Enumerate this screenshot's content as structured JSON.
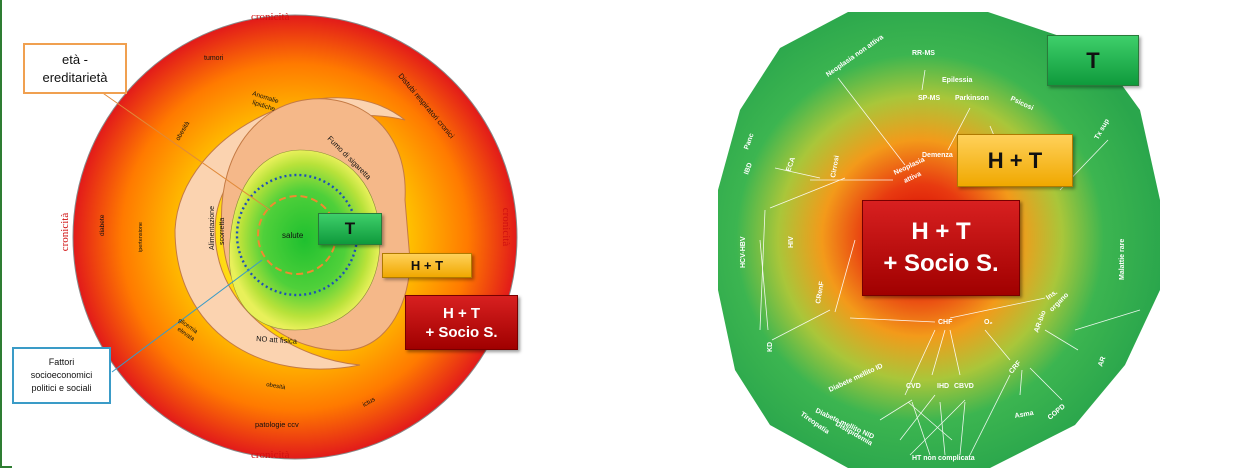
{
  "left": {
    "cronicita_top": "cronicità",
    "cronicita_left": "cronicità",
    "cronicita_right": "cronicità",
    "cronicita_bottom": "cronicità",
    "tumori": "tumori",
    "anomalie_1": "Anomalie",
    "anomalie_2": "lipidiche",
    "distubi": "Distubi respiratori cronici",
    "obesita_top": "obesità",
    "fumo": "Fumo di sigaretta",
    "alimentazione_1": "Alimentazione",
    "alimentazione_2": "scorretta",
    "ipertensione": "ipertensione",
    "diabete": "diabete",
    "salute": "salute",
    "glicemia_1": "glicemia",
    "glicemia_2": "elevata",
    "no_att": "NO att fisica",
    "obesita_bottom": "obesità",
    "ictus": "ictus",
    "patologie": "patologie ccv",
    "eta_1": "età -",
    "eta_2": "ereditarietà",
    "fattori_1": "Fattori",
    "fattori_2": "socioeconomici",
    "fattori_3": "politici e sociali",
    "badge_t": "T",
    "badge_ht": "H + T",
    "badge_hts_1": "H + T",
    "badge_hts_2": "+ Socio S."
  },
  "right": {
    "badge_t": "T",
    "badge_ht": "H + T",
    "badge_hts_1": "H + T",
    "badge_hts_2": "+ Socio S.",
    "labels": {
      "rr_ms": "RR-MS",
      "neoplasia_non_attiva": "Neoplasia non attiva",
      "epilessia": "Epilessia",
      "sp_ms": "SP-MS",
      "parkinson": "Parkinson",
      "psicosi": "Psicosi",
      "tx_sup": "Tx sup",
      "panc": "Panc",
      "ibd": "IBD",
      "eca": "ECA",
      "cirrosi": "Cirrosi",
      "neoplasia_1": "Neoplasia",
      "neoplasia_2": "attiva",
      "demenza": "Demenza",
      "hcv_hbv": "HCV-HBV",
      "hiv": "HIV",
      "malattie_rare": "Malattie rare",
      "crenf": "CRenF",
      "chf": "CHF",
      "o2": "O₂",
      "ins_1": "Ins.",
      "ins_2": "organo",
      "ar_bio": "AR-bio",
      "ctd": "CTD",
      "kd": "KD",
      "crf": "CRF",
      "ar": "AR",
      "cvd": "CVD",
      "ihd": "IHD",
      "cbvd": "CBVD",
      "diabete_id": "Diabete mellito ID",
      "diabete_nid": "Diabete mellito NID",
      "tireopatia": "Tireopatia",
      "dislipidemia": "Dislipidemia",
      "asma": "Asma",
      "copd": "COPD",
      "ht": "HT non complicata"
    }
  },
  "colors": {
    "green": "#2bb24c",
    "yellow": "#f5c400",
    "red": "#cc1111",
    "dotted_blue": "#1f4fb8",
    "dashed_orange": "#f08a30",
    "callout_orange": "#f0a050",
    "callout_blue": "#3a9bc7"
  }
}
